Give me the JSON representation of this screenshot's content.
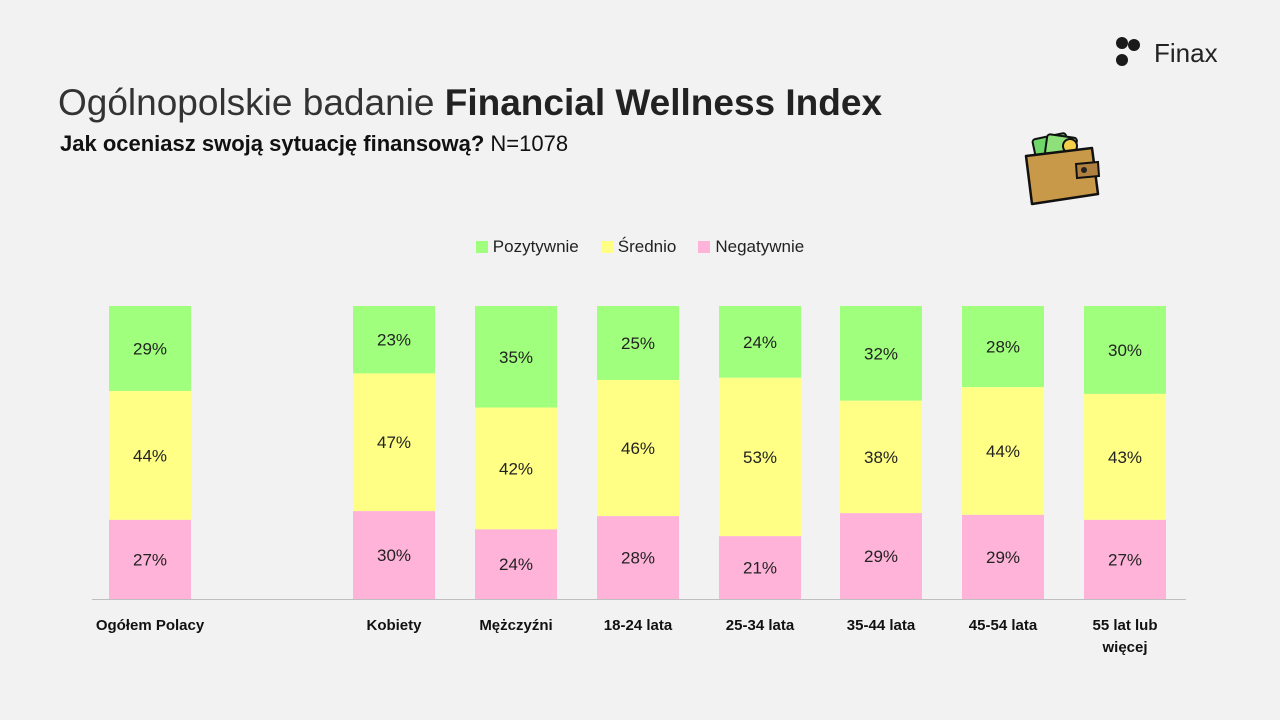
{
  "header": {
    "title_regular": "Ogólnopolskie badanie ",
    "title_bold": "Financial Wellness Index",
    "subtitle_bold": "Jak oceniasz swoją sytuację finansową?",
    "subtitle_regular": " N=1078"
  },
  "brand": {
    "name": "Finax"
  },
  "icons": {
    "logo": "finax-logo-icon",
    "wallet": "wallet-illustration-icon"
  },
  "colors": {
    "positive": "#a0ff7c",
    "average": "#ffff85",
    "negative": "#ffb3d9",
    "axis": "#bfbfbf",
    "background": "#f2f2f2"
  },
  "chart_data": {
    "type": "bar",
    "stacked": true,
    "normalized_percent": true,
    "categories": [
      "Ogółem Polacy",
      "Kobiety",
      "Mężczyźni",
      "18-24 lata",
      "25-34 lata",
      "35-44 lata",
      "45-54 lata",
      "55 lat lub więcej"
    ],
    "series": [
      {
        "name": "Pozytywnie",
        "values": [
          29,
          23,
          35,
          25,
          24,
          32,
          28,
          30
        ]
      },
      {
        "name": "Średnio",
        "values": [
          44,
          47,
          42,
          46,
          53,
          38,
          44,
          43
        ]
      },
      {
        "name": "Negatywnie",
        "values": [
          27,
          30,
          24,
          28,
          21,
          29,
          29,
          27
        ]
      }
    ],
    "data_label_suffix": "%",
    "legend_position": "top-center",
    "grid": false
  }
}
